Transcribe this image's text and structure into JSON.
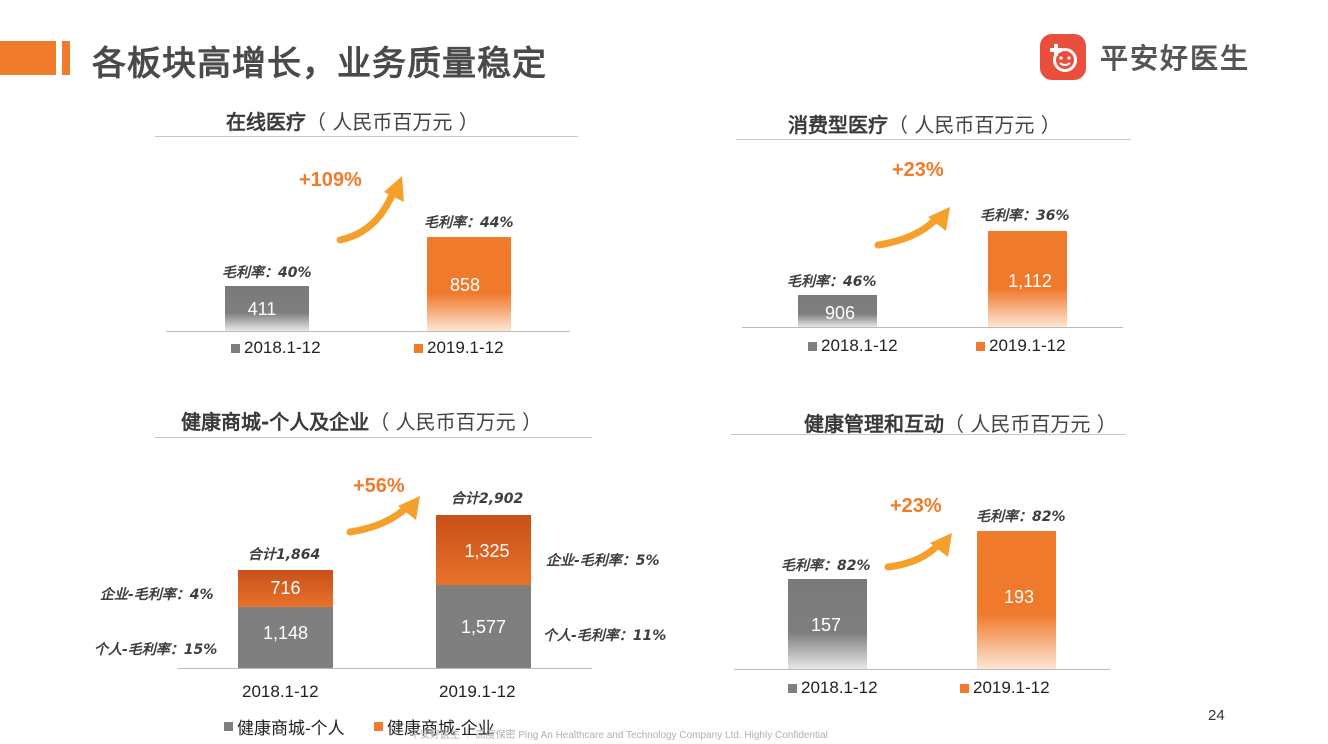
{
  "header": {
    "title": "各板块高增长，业务质量稳定",
    "logo_text": "平安好医生"
  },
  "legend": {
    "y2018": "2018.1-12",
    "y2019": "2019.1-12",
    "mall_personal": "健康商城-个人",
    "mall_enterprise": "健康商城-企业"
  },
  "colors": {
    "accent": "#f07b2b",
    "gray": "#7f7f7f",
    "logo": "#ea4e3c"
  },
  "footer": {
    "confidential": "平安好医生 ｜ 高度保密 Ping An Healthcare and Technology Company Ltd. Highly Confidential",
    "page_number": "24"
  },
  "chart_data": [
    {
      "type": "bar",
      "title": "在线医疗",
      "unit": "（ 人民币百万元 ）",
      "categories": [
        "2018.1-12",
        "2019.1-12"
      ],
      "values": [
        411,
        858
      ],
      "value_labels": [
        "411",
        "858"
      ],
      "margin_labels": [
        "毛利率：40%",
        "毛利率：44%"
      ],
      "growth": "+109%",
      "ylim": [
        0,
        900
      ]
    },
    {
      "type": "bar",
      "title": "消费型医疗",
      "unit": "（ 人民币百万元 ）",
      "categories": [
        "2018.1-12",
        "2019.1-12"
      ],
      "values": [
        906,
        1112
      ],
      "value_labels": [
        "906",
        "1,112"
      ],
      "margin_labels": [
        "毛利率：46%",
        "毛利率：36%"
      ],
      "growth": "+23%",
      "ylim": [
        0,
        3500
      ]
    },
    {
      "type": "bar",
      "stacked": true,
      "title": "健康商城-个人及企业",
      "unit": "（ 人民币百万元 ）",
      "categories": [
        "2018.1-12",
        "2019.1-12"
      ],
      "series": [
        {
          "name": "健康商城-个人",
          "values": [
            1148,
            1577
          ],
          "labels": [
            "1,148",
            "1,577"
          ]
        },
        {
          "name": "健康商城-企业",
          "values": [
            716,
            1325
          ],
          "labels": [
            "716",
            "1,325"
          ]
        }
      ],
      "totals": [
        "合计1,864",
        "合计2,902"
      ],
      "personal_margin_labels": [
        "个人-毛利率：15%",
        "个人-毛利率：11%"
      ],
      "enterprise_margin_labels": [
        "企业-毛利率：4%",
        "企业-毛利率：5%"
      ],
      "growth": "+56%",
      "ylim": [
        0,
        3000
      ]
    },
    {
      "type": "bar",
      "title": "健康管理和互动",
      "unit": "（ 人民币百万元 ）",
      "categories": [
        "2018.1-12",
        "2019.1-12"
      ],
      "values": [
        157,
        193
      ],
      "value_labels": [
        "157",
        "193"
      ],
      "margin_labels": [
        "毛利率：82%",
        "毛利率：82%"
      ],
      "growth": "+23%",
      "ylim": [
        0,
        200
      ]
    }
  ]
}
